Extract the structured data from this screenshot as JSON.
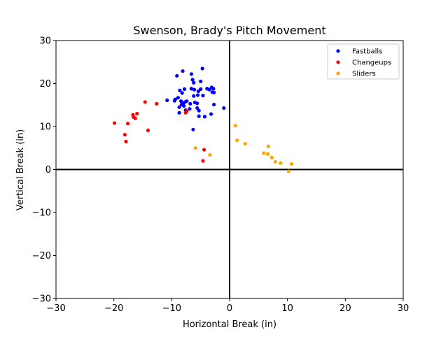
{
  "chart_data": {
    "type": "scatter",
    "title": "Swenson, Brady's Pitch Movement",
    "xlabel": "Horizontal Break (in)",
    "ylabel": "Vertical Break (in)",
    "xlim": [
      -30,
      30
    ],
    "ylim": [
      -30,
      30
    ],
    "xticks": [
      -30,
      -20,
      -10,
      0,
      10,
      20,
      30
    ],
    "yticks": [
      -30,
      -20,
      -10,
      0,
      10,
      20,
      30
    ],
    "grid": false,
    "reference_lines": [
      0,
      0
    ],
    "legend_position": "top-right",
    "series": [
      {
        "name": "Fastballs",
        "color": "#0000ff",
        "points": [
          [
            -4.7,
            23.5
          ],
          [
            -8.1,
            22.9
          ],
          [
            -9.1,
            21.8
          ],
          [
            -6.6,
            22.2
          ],
          [
            -6.4,
            20.9
          ],
          [
            -6.2,
            20.2
          ],
          [
            -5.0,
            20.5
          ],
          [
            -8.6,
            18.4
          ],
          [
            -7.8,
            18.7
          ],
          [
            -8.2,
            17.8
          ],
          [
            -6.6,
            18.8
          ],
          [
            -6.1,
            18.6
          ],
          [
            -5.4,
            18.2
          ],
          [
            -5.0,
            18.7
          ],
          [
            -3.9,
            18.8
          ],
          [
            -3.5,
            18.6
          ],
          [
            -3.1,
            19.1
          ],
          [
            -2.8,
            18.8
          ],
          [
            -3.0,
            18.0
          ],
          [
            -2.7,
            17.9
          ],
          [
            -4.6,
            17.2
          ],
          [
            -5.5,
            17.3
          ],
          [
            -6.2,
            17.1
          ],
          [
            -8.9,
            16.7
          ],
          [
            -9.4,
            16.3
          ],
          [
            -10.8,
            16.1
          ],
          [
            -8.4,
            15.9
          ],
          [
            -8.0,
            15.4
          ],
          [
            -7.4,
            15.9
          ],
          [
            -6.8,
            15.3
          ],
          [
            -6.0,
            15.6
          ],
          [
            -5.6,
            15.4
          ],
          [
            -7.7,
            15.7
          ],
          [
            -8.3,
            15.1
          ],
          [
            -9.5,
            16.0
          ],
          [
            -2.7,
            15.1
          ],
          [
            -8.7,
            14.5
          ],
          [
            -7.9,
            14.8
          ],
          [
            -6.9,
            14.1
          ],
          [
            -5.6,
            14.3
          ],
          [
            -5.3,
            13.7
          ],
          [
            -7.6,
            13.8
          ],
          [
            -8.7,
            13.2
          ],
          [
            -5.3,
            12.4
          ],
          [
            -4.3,
            12.3
          ],
          [
            -3.2,
            12.9
          ],
          [
            -1.0,
            14.3
          ],
          [
            -6.3,
            9.3
          ]
        ]
      },
      {
        "name": "Changeups",
        "color": "#ff0000",
        "points": [
          [
            -14.6,
            15.7
          ],
          [
            -12.6,
            15.3
          ],
          [
            -16.0,
            13.0
          ],
          [
            -16.7,
            12.7
          ],
          [
            -16.6,
            12.2
          ],
          [
            -16.3,
            11.9
          ],
          [
            -19.9,
            10.8
          ],
          [
            -17.6,
            10.7
          ],
          [
            -14.1,
            9.1
          ],
          [
            -18.1,
            8.1
          ],
          [
            -17.9,
            6.5
          ],
          [
            -7.6,
            13.2
          ],
          [
            -7.4,
            13.6
          ],
          [
            -4.4,
            4.6
          ],
          [
            -4.6,
            2.0
          ]
        ]
      },
      {
        "name": "Sliders",
        "color": "#ffa500",
        "points": [
          [
            1.0,
            10.2
          ],
          [
            1.3,
            6.8
          ],
          [
            2.7,
            6.0
          ],
          [
            -5.9,
            5.0
          ],
          [
            6.7,
            5.4
          ],
          [
            5.9,
            3.8
          ],
          [
            6.6,
            3.6
          ],
          [
            -3.4,
            3.4
          ],
          [
            7.3,
            2.8
          ],
          [
            7.9,
            1.8
          ],
          [
            8.8,
            1.5
          ],
          [
            10.7,
            1.3
          ],
          [
            10.2,
            -0.4
          ]
        ]
      }
    ]
  }
}
